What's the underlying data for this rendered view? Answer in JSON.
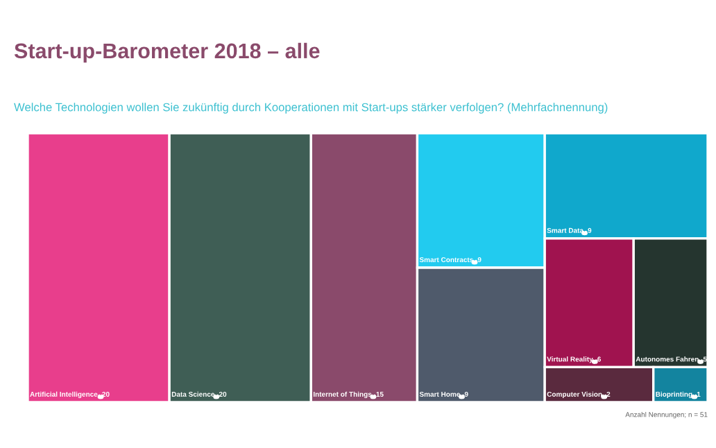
{
  "chart_data": {
    "type": "other",
    "title": "Start-up-Barometer 2018 – alle",
    "subtitle": "Welche Technologien wollen Sie zukünftig durch Kooperationen mit Start-ups stärker verfolgen? (Mehrfachnennung)",
    "categories": [
      "Artificial Intelligence",
      "Data Science",
      "Internet of Things",
      "Smart Contracts",
      "Smart Home",
      "Smart Data",
      "Virtual Reality",
      "Autonomes Fahren",
      "Computer Vision",
      "Bioprinting"
    ],
    "data_labels": true,
    "values": [
      20,
      20,
      15,
      9,
      9,
      9,
      6,
      5,
      2,
      1
    ],
    "colors": [
      "#e83e8c",
      "#3f5e55",
      "#8a4a6b",
      "#22cbef",
      "#4f5a6b",
      "#10a8cc",
      "#a0134f",
      "#25352f",
      "#5a2a3e",
      "#13849f"
    ],
    "annotations": [
      "Anzahl Nennungen; n = 51"
    ]
  }
}
